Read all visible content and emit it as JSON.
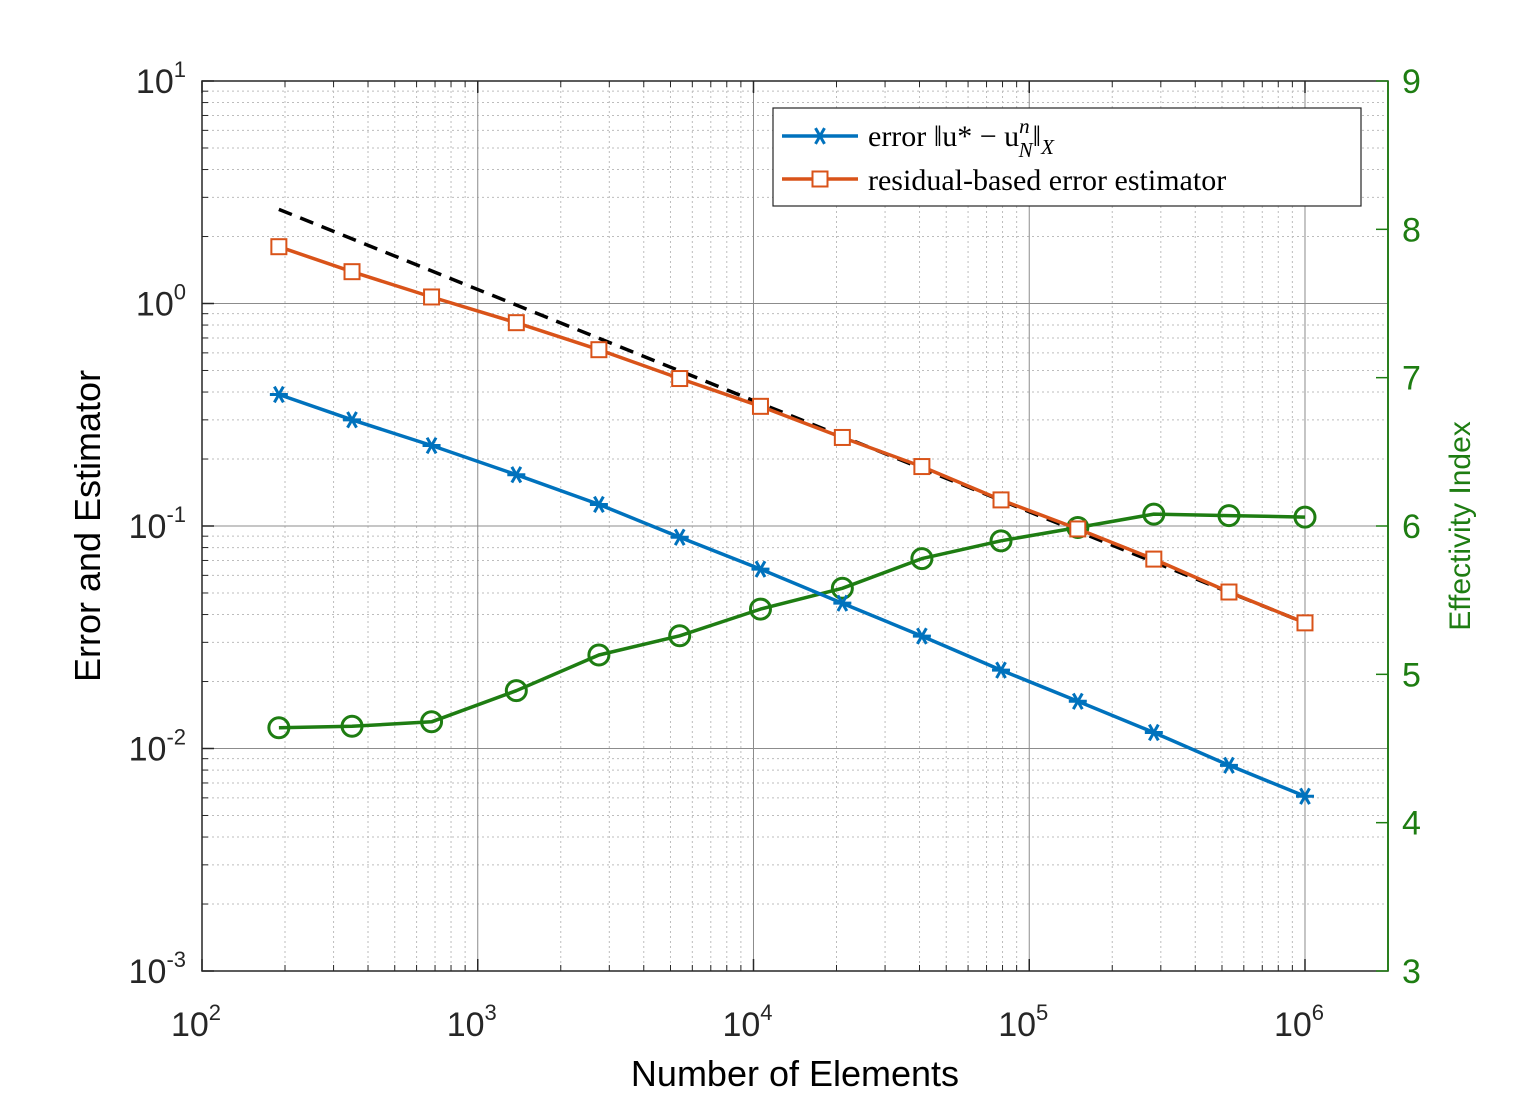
{
  "chart_data": {
    "type": "line",
    "xscale": "log",
    "yscale_left": "log",
    "xlim": [
      100,
      2000000
    ],
    "ylim_left": [
      0.001,
      10
    ],
    "ylim_right": [
      3,
      9
    ],
    "xlabel": "Number of Elements",
    "ylabel_left": "Error and Estimator",
    "ylabel_right": "Effectivity Index",
    "grid": true,
    "minor_grid": true,
    "legend_position": "top-right",
    "x_ticks": [
      {
        "value": 100,
        "base": "10",
        "exp": "2"
      },
      {
        "value": 1000,
        "base": "10",
        "exp": "3"
      },
      {
        "value": 10000,
        "base": "10",
        "exp": "4"
      },
      {
        "value": 100000,
        "base": "10",
        "exp": "5"
      },
      {
        "value": 1000000,
        "base": "10",
        "exp": "6"
      }
    ],
    "y_ticks_left": [
      {
        "value": 10,
        "base": "10",
        "exp": "1"
      },
      {
        "value": 1,
        "base": "10",
        "exp": "0"
      },
      {
        "value": 0.1,
        "base": "10",
        "exp": "-1"
      },
      {
        "value": 0.01,
        "base": "10",
        "exp": "-2"
      },
      {
        "value": 0.001,
        "base": "10",
        "exp": "-3"
      }
    ],
    "y_ticks_right": [
      {
        "value": 9,
        "label": "9"
      },
      {
        "value": 8,
        "label": "8"
      },
      {
        "value": 7,
        "label": "7"
      },
      {
        "value": 6,
        "label": "6"
      },
      {
        "value": 5,
        "label": "5"
      },
      {
        "value": 4,
        "label": "4"
      },
      {
        "value": 3,
        "label": "3"
      }
    ],
    "x": [
      190,
      350,
      680,
      1380,
      2750,
      5400,
      10600,
      21000,
      40800,
      79000,
      150000,
      283000,
      530000,
      1000000
    ],
    "series": [
      {
        "name": "error",
        "legend_label": "error ‖u* − u",
        "legend_sup": "n",
        "legend_sub": "N",
        "legend_tail": "‖",
        "legend_tail_sub": "X",
        "axis": "left",
        "color": "#0072bd",
        "marker": "asterisk",
        "values": [
          0.39,
          0.3,
          0.23,
          0.17,
          0.125,
          0.089,
          0.064,
          0.045,
          0.032,
          0.0225,
          0.0163,
          0.0118,
          0.0084,
          0.0061
        ]
      },
      {
        "name": "estimator",
        "legend_label": "residual-based error estimator",
        "axis": "left",
        "color": "#d95319",
        "marker": "square",
        "values": [
          1.8,
          1.39,
          1.07,
          0.82,
          0.62,
          0.46,
          0.345,
          0.25,
          0.185,
          0.131,
          0.097,
          0.071,
          0.0505,
          0.0367
        ]
      },
      {
        "name": "effectivity",
        "axis": "right",
        "color": "#1e7d12",
        "marker": "circle",
        "values": [
          4.64,
          4.65,
          4.68,
          4.89,
          5.13,
          5.26,
          5.44,
          5.58,
          5.78,
          5.9,
          5.99,
          6.08,
          6.07,
          6.06
        ]
      }
    ],
    "reference_line": {
      "style": "dashed",
      "color": "#000000",
      "x": [
        190,
        1000000
      ],
      "values": [
        2.65,
        0.0367
      ]
    }
  }
}
